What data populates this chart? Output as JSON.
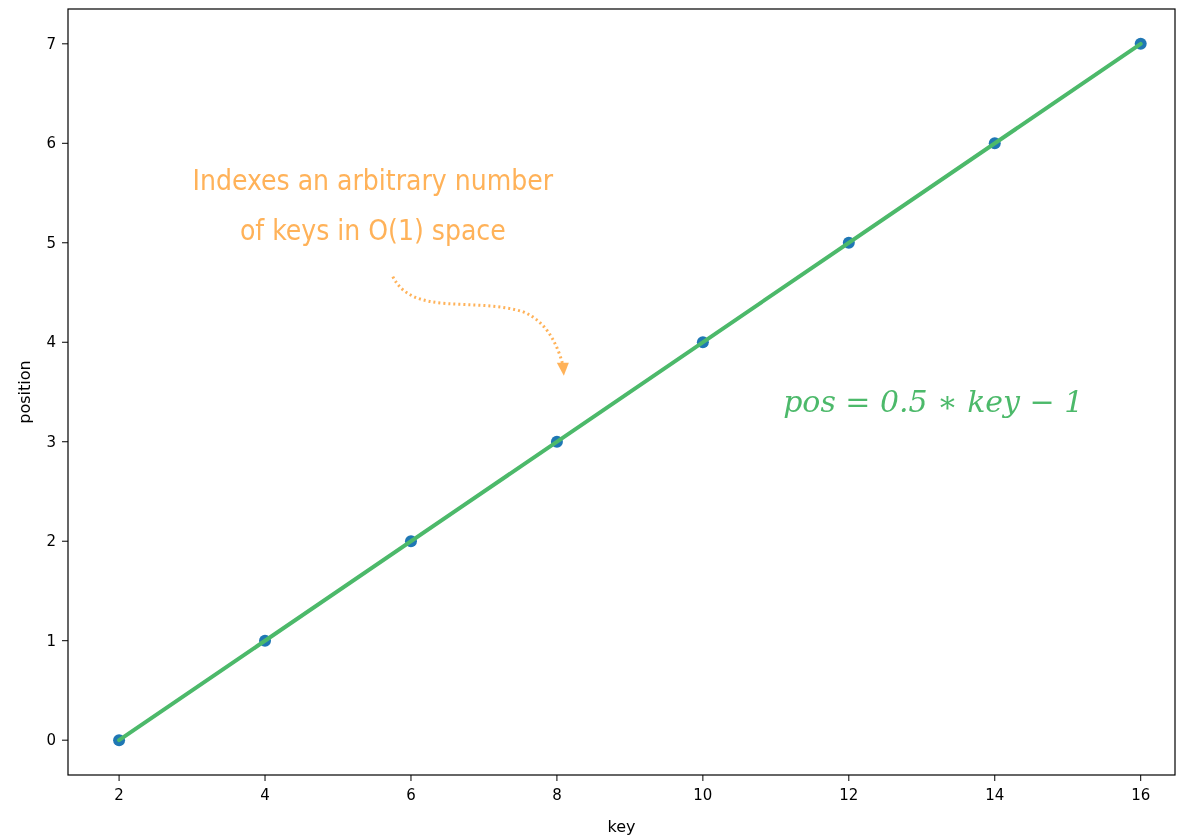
{
  "chart_data": {
    "type": "scatter",
    "xlabel": "key",
    "ylabel": "position",
    "xlim": [
      1.3,
      16.47
    ],
    "ylim": [
      -0.35,
      7.35
    ],
    "xticks": [
      2,
      4,
      6,
      8,
      10,
      12,
      14,
      16
    ],
    "yticks": [
      0,
      1,
      2,
      3,
      4,
      5,
      6,
      7
    ],
    "grid": false,
    "series": [
      {
        "marker": "circle",
        "color": "#1f77b4",
        "x": [
          2,
          4,
          6,
          8,
          10,
          12,
          14,
          16
        ],
        "values": [
          0,
          1,
          2,
          3,
          4,
          5,
          6,
          7
        ]
      },
      {
        "type": "line",
        "name": "pos = 0.5 ∗ key − 1",
        "color": "#4cb96a",
        "marker": "none",
        "line_style": "solid",
        "x": [
          2,
          16
        ],
        "values": [
          0,
          7
        ]
      }
    ],
    "annotations": [
      "Indexes an arbitrary number of keys in O(1) space"
    ]
  }
}
